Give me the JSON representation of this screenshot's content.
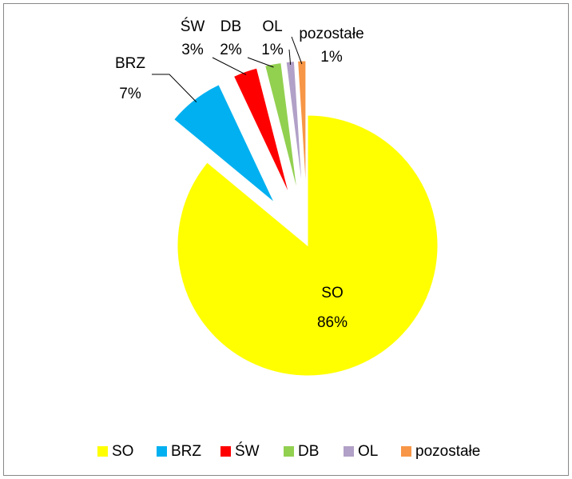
{
  "chart_data": {
    "type": "pie",
    "categories": [
      "SO",
      "BRZ",
      "ŚW",
      "DB",
      "OL",
      "pozostałe"
    ],
    "values": [
      86,
      7,
      3,
      2,
      1,
      1
    ],
    "value_labels": [
      "86%",
      "7%",
      "3%",
      "2%",
      "1%",
      "1%"
    ],
    "colors": [
      "#ffff00",
      "#00b0f0",
      "#ff0000",
      "#92d050",
      "#b1a0c7",
      "#f79646"
    ],
    "legend": "bottom"
  }
}
